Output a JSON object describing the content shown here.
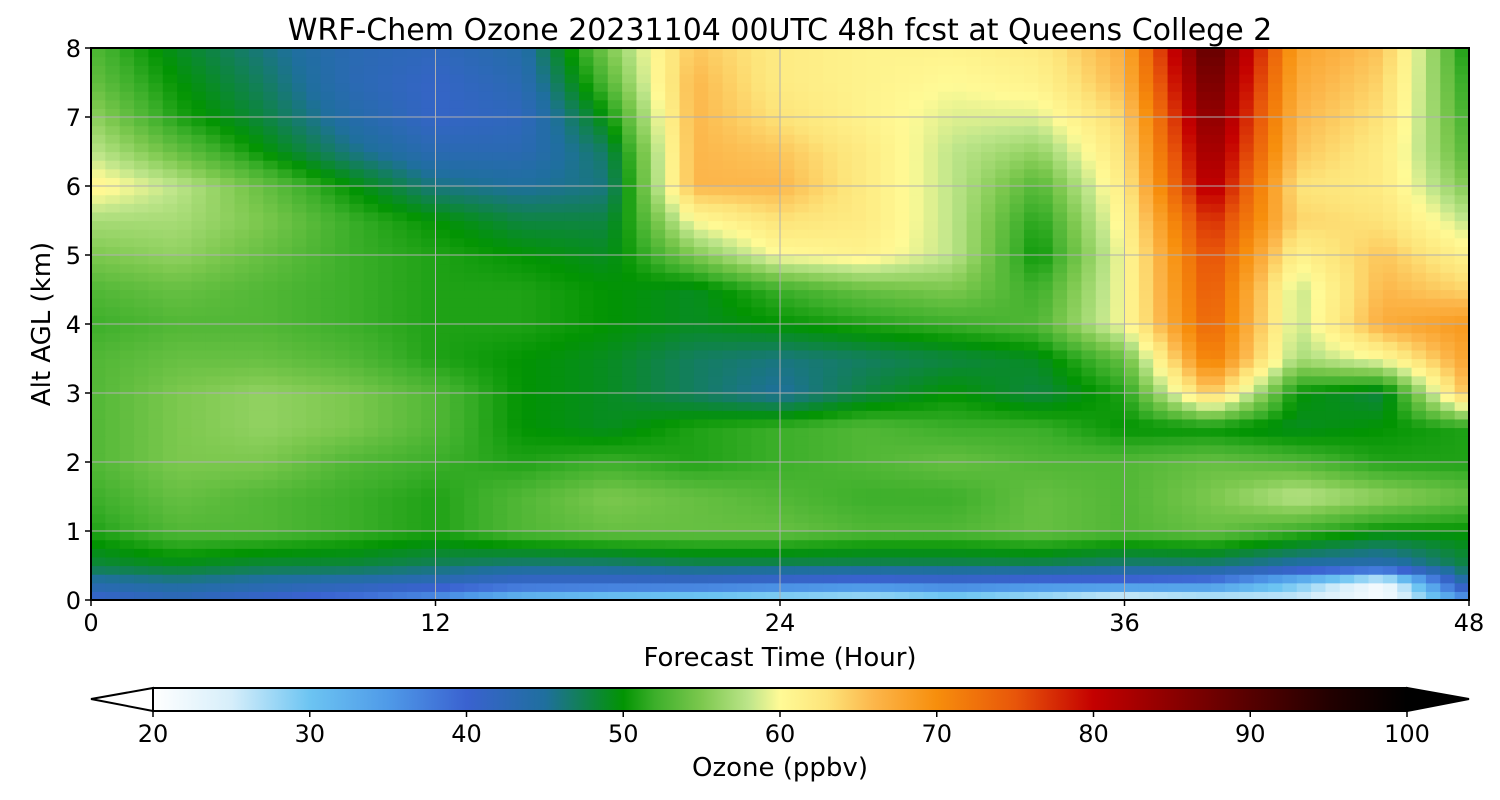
{
  "chart_data": {
    "type": "heatmap",
    "title": "WRF-Chem Ozone  20231104 00UTC 48h fcst at Queens College 2",
    "xlabel": "Forecast Time (Hour)",
    "ylabel": "Alt AGL (km)",
    "xlim": [
      0,
      48
    ],
    "ylim": [
      0,
      8
    ],
    "x_ticks": [
      "0",
      "12",
      "24",
      "36",
      "48"
    ],
    "y_ticks": [
      "0",
      "1",
      "2",
      "3",
      "4",
      "5",
      "6",
      "7",
      "8"
    ],
    "grid": true,
    "x": [
      0,
      3,
      6,
      9,
      12,
      15,
      18,
      21,
      24,
      27,
      30,
      33,
      36,
      39,
      42,
      45,
      48
    ],
    "y": [
      0,
      0.25,
      0.5,
      1,
      1.5,
      2,
      2.5,
      3,
      3.5,
      4,
      4.5,
      5,
      5.5,
      6,
      6.5,
      7,
      7.5,
      8
    ],
    "z": [
      [
        40,
        42,
        40,
        38,
        35,
        30,
        28,
        27,
        26,
        25,
        27,
        25,
        22,
        24,
        25,
        21,
        35
      ],
      [
        44,
        45,
        44,
        43,
        42,
        40,
        40,
        40,
        39,
        38,
        39,
        38,
        38,
        37,
        30,
        21,
        45
      ],
      [
        48,
        49,
        48,
        48,
        47,
        46,
        46,
        47,
        47,
        47,
        47,
        47,
        46,
        46,
        44,
        43,
        48
      ],
      [
        51,
        53,
        53,
        52,
        51,
        53,
        54,
        54,
        54,
        53,
        53,
        54,
        53,
        54,
        52,
        50,
        50
      ],
      [
        52,
        54,
        53,
        52,
        51,
        53,
        55,
        54,
        53,
        52,
        52,
        54,
        53,
        55,
        58,
        56,
        54
      ],
      [
        53,
        55,
        55,
        53,
        52,
        51,
        52,
        51,
        52,
        53,
        54,
        53,
        53,
        54,
        53,
        51,
        51
      ],
      [
        53,
        55,
        56,
        55,
        53,
        50,
        49,
        51,
        52,
        53,
        52,
        52,
        50,
        50,
        49,
        50,
        51
      ],
      [
        53,
        55,
        56,
        55,
        53,
        50,
        49,
        47,
        45,
        48,
        50,
        48,
        51,
        65,
        50,
        48,
        66
      ],
      [
        53,
        54,
        54,
        53,
        51,
        50,
        49,
        47,
        46,
        47,
        48,
        49,
        54,
        72,
        57,
        60,
        68
      ],
      [
        52,
        53,
        53,
        52,
        51,
        51,
        50,
        49,
        50,
        51,
        52,
        53,
        60,
        74,
        58,
        67,
        69
      ],
      [
        53,
        54,
        53,
        52,
        51,
        51,
        50,
        49,
        52,
        54,
        55,
        52,
        60,
        75,
        58,
        66,
        64
      ],
      [
        55,
        56,
        54,
        52,
        51,
        50,
        49,
        55,
        60,
        61,
        58,
        50,
        60,
        76,
        61,
        65,
        61
      ],
      [
        57,
        57,
        55,
        52,
        50,
        48,
        48,
        60,
        63,
        62,
        58,
        51,
        61,
        78,
        64,
        63,
        58
      ],
      [
        61,
        58,
        54,
        50,
        46,
        45,
        46,
        66,
        66,
        62,
        58,
        53,
        62,
        82,
        63,
        62,
        55
      ],
      [
        58,
        54,
        50,
        46,
        43,
        43,
        47,
        66,
        65,
        62,
        58,
        56,
        63,
        84,
        65,
        62,
        53
      ],
      [
        56,
        51,
        48,
        44,
        41,
        42,
        50,
        66,
        63,
        61,
        59,
        59,
        64,
        86,
        66,
        63,
        52
      ],
      [
        54,
        50,
        47,
        43,
        41,
        43,
        53,
        66,
        62,
        61,
        60,
        61,
        66,
        88,
        67,
        64,
        51
      ],
      [
        53,
        49,
        46,
        43,
        42,
        44,
        55,
        65,
        62,
        61,
        61,
        62,
        67,
        90,
        68,
        65,
        50
      ]
    ],
    "colorbar": {
      "label": "Ozone  (ppbv)",
      "min": 20,
      "max": 100,
      "ticks": [
        "20",
        "30",
        "40",
        "50",
        "60",
        "70",
        "80",
        "90",
        "100"
      ],
      "extend": "both",
      "stops": [
        [
          20,
          "#ffffff"
        ],
        [
          25,
          "#d6eefa"
        ],
        [
          30,
          "#6cc4f2"
        ],
        [
          35,
          "#4f9ae8"
        ],
        [
          40,
          "#3a62d0"
        ],
        [
          45,
          "#1f6f9e"
        ],
        [
          50,
          "#029402"
        ],
        [
          52,
          "#3caf2a"
        ],
        [
          55,
          "#7cc84e"
        ],
        [
          58,
          "#bde58a"
        ],
        [
          60,
          "#fffa96"
        ],
        [
          63,
          "#fde47a"
        ],
        [
          66,
          "#fcb64a"
        ],
        [
          70,
          "#f78e0c"
        ],
        [
          75,
          "#e8560a"
        ],
        [
          80,
          "#c40000"
        ],
        [
          85,
          "#8c0000"
        ],
        [
          90,
          "#560000"
        ],
        [
          95,
          "#230000"
        ],
        [
          100,
          "#000000"
        ]
      ]
    }
  }
}
